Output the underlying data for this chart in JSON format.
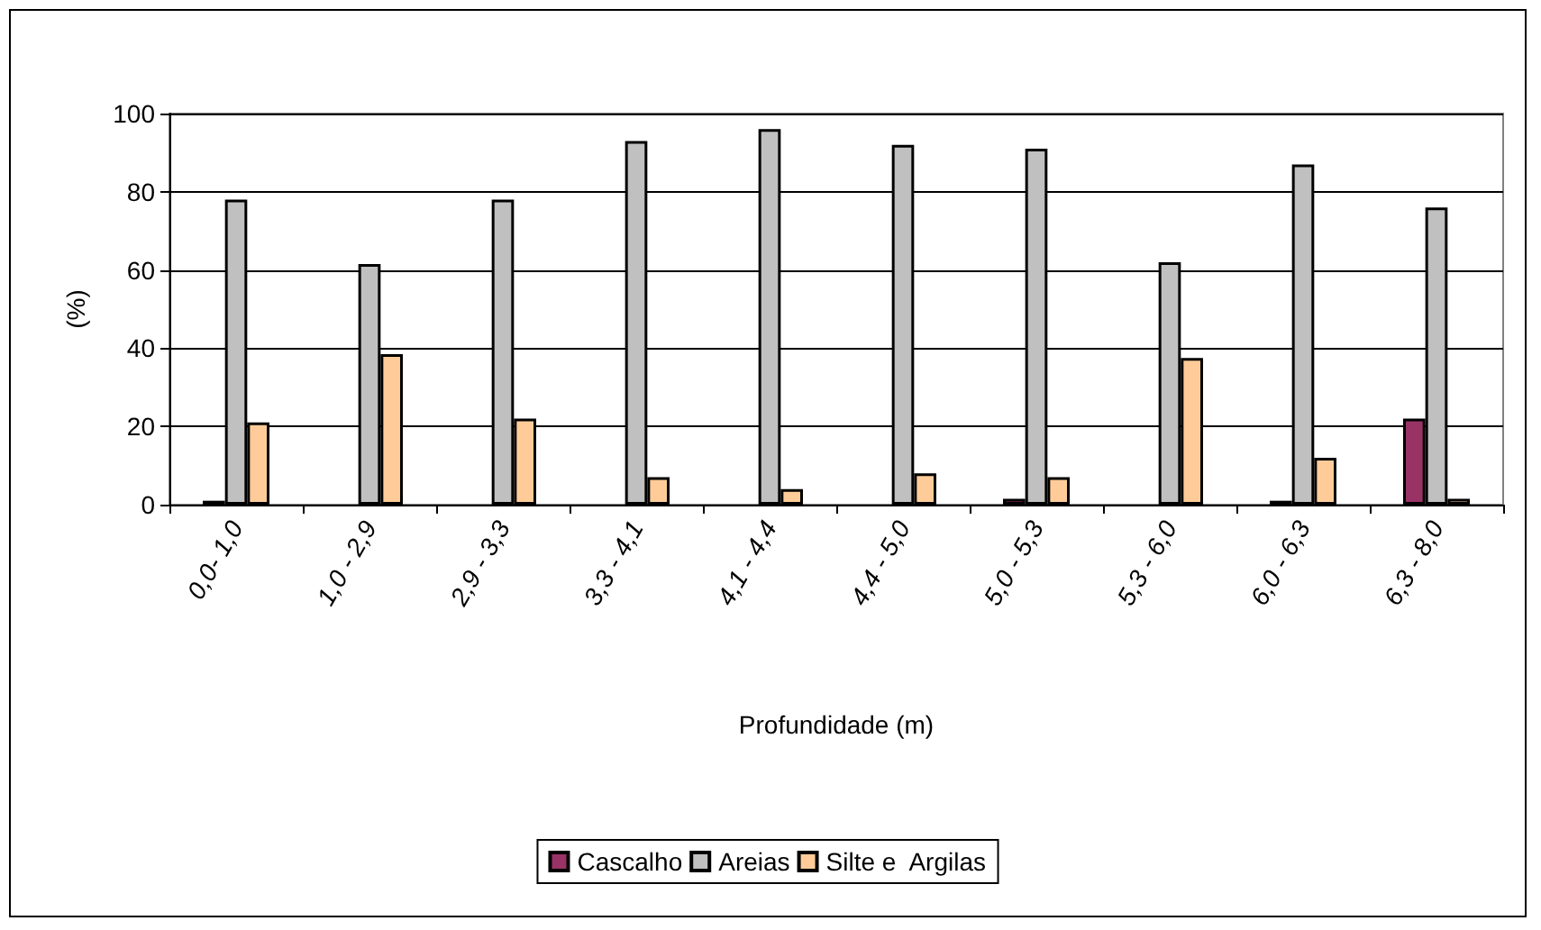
{
  "chart_data": {
    "type": "bar",
    "xlabel": "Profundidade (m)",
    "ylabel": "(%)",
    "categories": [
      "0,0- 1,0",
      "1,0 - 2,9",
      "2,9 - 3,3",
      "3,3 - 4,1",
      "4,1 - 4,4",
      "4,4 - 5,0",
      "5,0 - 5,3",
      "5,3 - 6,0",
      "6,0 - 6,3",
      "6,3 - 8,0"
    ],
    "series": [
      {
        "name": "Cascalho",
        "color": "#993366",
        "values": [
          1,
          null,
          null,
          null,
          null,
          null,
          1.5,
          null,
          1,
          22
        ]
      },
      {
        "name": "Areias",
        "color": "#c0c0c0",
        "values": [
          78,
          61.5,
          78,
          93,
          96,
          92,
          91,
          62,
          87,
          76
        ]
      },
      {
        "name": "Silte e  Argilas",
        "color": "#ffcc99",
        "values": [
          21,
          38.5,
          22,
          7,
          4,
          8,
          7,
          37.5,
          12,
          1.5
        ]
      }
    ],
    "ylim": [
      0,
      100
    ],
    "yticks": [
      0,
      20,
      40,
      60,
      80,
      100
    ],
    "grid": "y",
    "legend": "bottom"
  }
}
